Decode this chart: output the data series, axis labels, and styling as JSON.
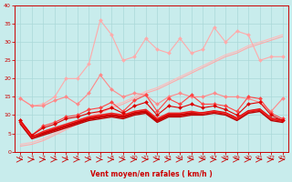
{
  "xlabel": "Vent moyen/en rafales ( km/h )",
  "xlim": [
    -0.5,
    23.5
  ],
  "ylim": [
    0,
    40
  ],
  "yticks": [
    0,
    5,
    10,
    15,
    20,
    25,
    30,
    35,
    40
  ],
  "xticks": [
    0,
    1,
    2,
    3,
    4,
    5,
    6,
    7,
    8,
    9,
    10,
    11,
    12,
    13,
    14,
    15,
    16,
    17,
    18,
    19,
    20,
    21,
    22,
    23
  ],
  "bg_color": "#c8ecec",
  "grid_color": "#aad8d8",
  "series": [
    {
      "color": "#ffaaaa",
      "linewidth": 0.8,
      "marker": "D",
      "markersize": 2.0,
      "y": [
        14.5,
        12.5,
        13.0,
        15.0,
        20.0,
        20.0,
        24.0,
        36.0,
        32.0,
        25.0,
        26.0,
        31.0,
        28.0,
        27.0,
        31.0,
        27.0,
        28.0,
        34.0,
        30.0,
        33.0,
        32.0,
        25.0,
        26.0,
        26.0
      ]
    },
    {
      "color": "#ff8888",
      "linewidth": 0.8,
      "marker": "D",
      "markersize": 2.0,
      "y": [
        14.5,
        12.5,
        12.5,
        14.0,
        15.0,
        13.0,
        16.0,
        21.0,
        17.0,
        15.0,
        16.0,
        15.5,
        13.0,
        15.0,
        16.0,
        15.0,
        15.0,
        16.0,
        15.0,
        15.0,
        14.5,
        13.5,
        11.0,
        14.5
      ]
    },
    {
      "color": "#ffbbbb",
      "linewidth": 0.8,
      "marker": null,
      "markersize": 0,
      "y": [
        2.0,
        2.5,
        3.5,
        5.0,
        6.5,
        8.0,
        9.5,
        11.0,
        12.5,
        13.5,
        15.0,
        16.5,
        17.5,
        19.0,
        20.5,
        22.0,
        23.5,
        25.0,
        26.5,
        27.5,
        29.0,
        30.0,
        31.0,
        32.0
      ]
    },
    {
      "color": "#ffaaaa",
      "linewidth": 0.8,
      "marker": null,
      "markersize": 0,
      "y": [
        1.5,
        2.0,
        3.0,
        4.5,
        6.0,
        7.5,
        9.0,
        10.5,
        12.0,
        13.0,
        14.5,
        16.0,
        17.0,
        18.5,
        20.0,
        21.5,
        23.0,
        24.5,
        26.0,
        27.0,
        28.5,
        29.5,
        30.5,
        31.5
      ]
    },
    {
      "color": "#ff4444",
      "linewidth": 0.8,
      "marker": "D",
      "markersize": 2.0,
      "y": [
        8.5,
        4.5,
        7.0,
        8.0,
        9.5,
        10.0,
        11.5,
        12.0,
        13.5,
        11.0,
        14.0,
        15.5,
        11.0,
        14.5,
        13.0,
        15.5,
        13.0,
        13.0,
        12.5,
        11.0,
        15.0,
        14.5,
        10.5,
        9.0
      ]
    },
    {
      "color": "#dd0000",
      "linewidth": 0.8,
      "marker": "D",
      "markersize": 2.0,
      "y": [
        8.5,
        4.5,
        6.5,
        7.5,
        9.0,
        9.5,
        10.5,
        11.0,
        12.0,
        10.5,
        12.5,
        13.5,
        10.0,
        12.5,
        12.0,
        13.0,
        12.0,
        12.5,
        11.5,
        10.0,
        13.0,
        13.5,
        10.0,
        8.5
      ]
    },
    {
      "color": "#cc0000",
      "linewidth": 2.0,
      "marker": null,
      "markersize": 0,
      "y": [
        8.0,
        4.0,
        5.0,
        6.0,
        7.0,
        8.0,
        9.0,
        9.5,
        10.0,
        9.5,
        10.5,
        11.0,
        8.5,
        10.0,
        10.0,
        10.5,
        10.5,
        11.0,
        10.5,
        9.0,
        11.0,
        11.5,
        9.0,
        8.5
      ]
    },
    {
      "color": "#bb0000",
      "linewidth": 1.0,
      "marker": null,
      "markersize": 0,
      "y": [
        7.5,
        3.5,
        4.5,
        5.5,
        6.5,
        7.5,
        8.5,
        9.0,
        9.5,
        9.0,
        10.0,
        10.5,
        8.0,
        9.5,
        9.5,
        10.0,
        10.0,
        10.5,
        10.0,
        8.5,
        10.5,
        11.0,
        8.5,
        8.0
      ]
    },
    {
      "color": "#ee2222",
      "linewidth": 1.2,
      "marker": null,
      "markersize": 0,
      "y": [
        8.0,
        4.0,
        5.5,
        6.5,
        7.5,
        8.5,
        9.5,
        10.0,
        10.5,
        10.0,
        11.0,
        11.5,
        9.0,
        10.5,
        10.5,
        11.0,
        10.5,
        11.0,
        10.5,
        9.0,
        11.0,
        11.5,
        9.0,
        8.5
      ]
    }
  ]
}
